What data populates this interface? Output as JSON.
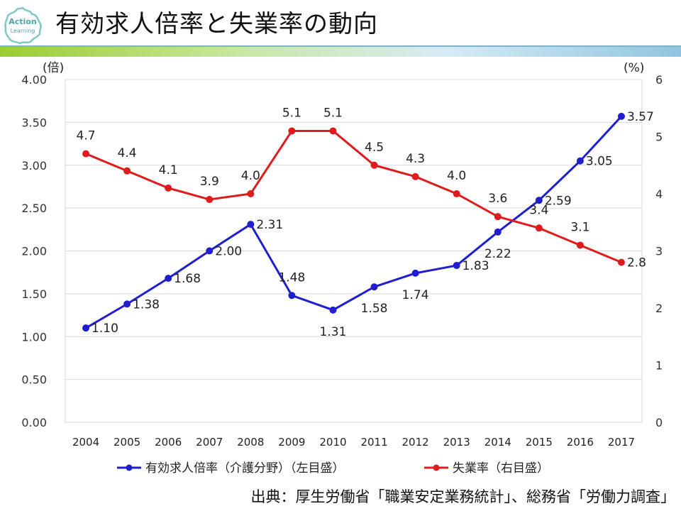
{
  "header": {
    "title": "有効求人倍率と失業率の動向",
    "logo_text_top": "Action",
    "logo_text_bottom": "Learning"
  },
  "chart_data": {
    "type": "line",
    "title": "有効求人倍率と失業率の動向",
    "categories": [
      "2004",
      "2005",
      "2006",
      "2007",
      "2008",
      "2009",
      "2010",
      "2011",
      "2012",
      "2013",
      "2014",
      "2015",
      "2016",
      "2017"
    ],
    "y_left": {
      "unit_label": "(倍)",
      "ylim": [
        0,
        4
      ],
      "ticks": [
        "0.00",
        "0.50",
        "1.00",
        "1.50",
        "2.00",
        "2.50",
        "3.00",
        "3.50",
        "4.00"
      ]
    },
    "y_right": {
      "unit_label": "(%)",
      "ylim": [
        0,
        6
      ],
      "ticks": [
        "0",
        "1",
        "2",
        "3",
        "4",
        "5",
        "6"
      ]
    },
    "series": [
      {
        "name": "有効求人倍率（介護分野）（左目盛）",
        "axis": "left",
        "color": "#1f1fd1",
        "values": [
          1.1,
          1.38,
          1.68,
          2.0,
          2.31,
          1.48,
          1.31,
          1.58,
          1.74,
          1.83,
          2.22,
          2.59,
          3.05,
          3.57
        ],
        "labels": [
          "1.10",
          "1.38",
          "1.68",
          "2.00",
          "2.31",
          "1.48",
          "1.31",
          "1.58",
          "1.74",
          "1.83",
          "2.22",
          "2.59",
          "3.05",
          "3.57"
        ],
        "label_placement": [
          "right",
          "right",
          "right",
          "right",
          "right",
          "above",
          "below",
          "below",
          "below",
          "right",
          "below",
          "right",
          "right",
          "right"
        ]
      },
      {
        "name": "失業率（右目盛）",
        "axis": "right",
        "color": "#e01b1b",
        "values": [
          4.7,
          4.4,
          4.1,
          3.9,
          4.0,
          5.1,
          5.1,
          4.5,
          4.3,
          4.0,
          3.6,
          3.4,
          3.1,
          2.8
        ],
        "labels": [
          "4.7",
          "4.4",
          "4.1",
          "3.9",
          "4.0",
          "5.1",
          "5.1",
          "4.5",
          "4.3",
          "4.0",
          "3.6",
          "3.4",
          "3.1",
          "2.8"
        ],
        "label_placement": [
          "above",
          "above",
          "above",
          "above",
          "above",
          "above",
          "above",
          "above",
          "above",
          "above",
          "above",
          "above",
          "above",
          "right"
        ]
      }
    ],
    "legend": "bottom",
    "grid": true
  },
  "footer": {
    "source": "出典：厚生労働省「職業安定業務統計」、総務省「労働力調査」"
  }
}
